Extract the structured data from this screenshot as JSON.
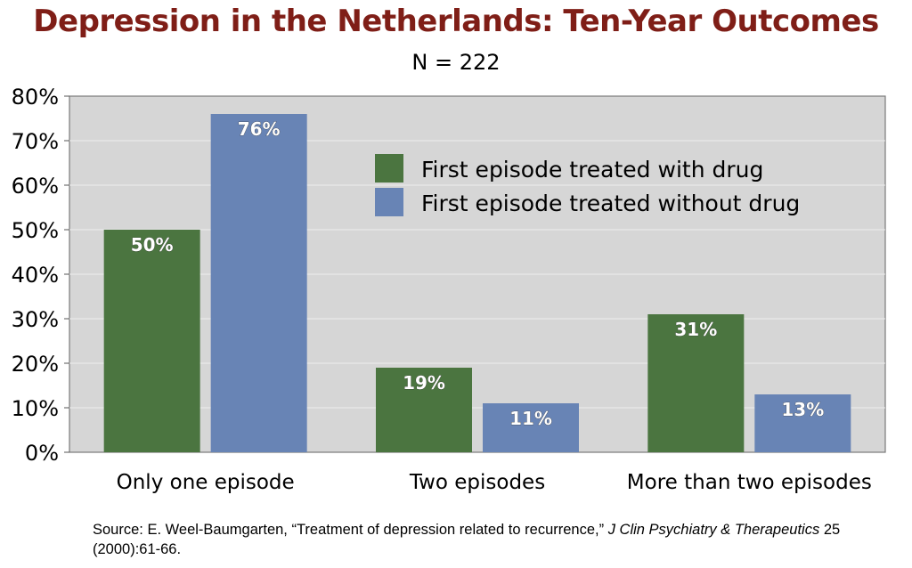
{
  "chart_data": {
    "type": "bar",
    "title": "Depression in the Netherlands: Ten-Year Outcomes",
    "subtitle": "N =  222",
    "categories": [
      "Only one episode",
      "Two episodes",
      "More than two episodes"
    ],
    "series": [
      {
        "name": "First episode treated with drug",
        "values": [
          50,
          19,
          31
        ],
        "labels": [
          "50%",
          "19%",
          "31%"
        ],
        "color": "#4b7540"
      },
      {
        "name": "First episode treated without drug",
        "values": [
          76,
          11,
          13
        ],
        "labels": [
          "76%",
          "11%",
          "13%"
        ],
        "color": "#6884b5"
      }
    ],
    "ylim": [
      0,
      80
    ],
    "yticks": [
      0,
      10,
      20,
      30,
      40,
      50,
      60,
      70,
      80
    ],
    "ytick_labels": [
      "0%",
      "10%",
      "20%",
      "30%",
      "40%",
      "50%",
      "60%",
      "70%",
      "80%"
    ],
    "xlabel": "",
    "ylabel": "",
    "grid": true,
    "legend_position": "top-right",
    "plot_background": "#d6d6d6"
  },
  "footnote": {
    "prefix": "Source: E. Weel-Baumgarten, “Treatment of depression related to recurrence,”",
    "journal": "J Clin Psychiatry & Therapeutics",
    "suffix": "25 (2000):61-66."
  }
}
